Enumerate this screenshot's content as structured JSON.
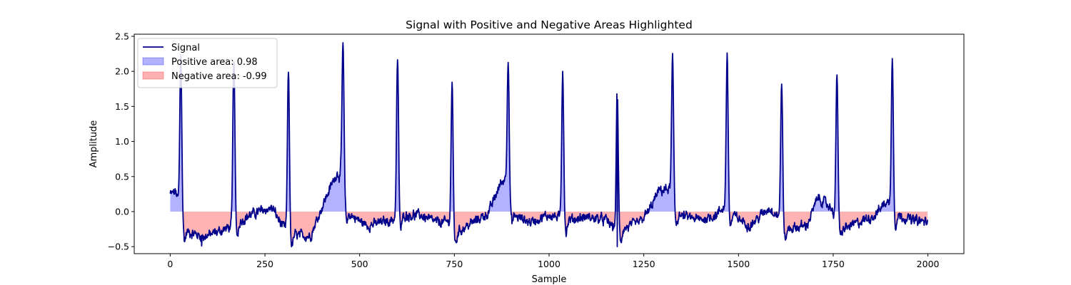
{
  "chart_data": {
    "type": "area",
    "title": "Signal with Positive and Negative Areas Highlighted",
    "xlabel": "Sample",
    "ylabel": "Amplitude",
    "xlim": [
      -95,
      2095
    ],
    "ylim": [
      -0.6,
      2.53
    ],
    "xticks": [
      0,
      250,
      500,
      750,
      1000,
      1250,
      1500,
      1750,
      2000
    ],
    "xtick_labels": [
      "0",
      "250",
      "500",
      "750",
      "1000",
      "1250",
      "1500",
      "1750",
      "2000"
    ],
    "yticks": [
      -0.5,
      0.0,
      0.5,
      1.0,
      1.5,
      2.0,
      2.5
    ],
    "ytick_labels": [
      "−0.5",
      "0.0",
      "0.5",
      "1.0",
      "1.5",
      "2.0",
      "2.5"
    ],
    "grid": false,
    "legend_position": "top-left",
    "series": [
      {
        "name": "Signal",
        "style": "line",
        "color": "#00008b"
      },
      {
        "name": "Positive area: 0.98",
        "style": "fill",
        "color": "#0000ff",
        "alpha": 0.3
      },
      {
        "name": "Negative area: -0.99",
        "style": "fill",
        "color": "#ff0000",
        "alpha": 0.3
      }
    ],
    "num_samples": 2000,
    "peaks": [
      {
        "x": 28,
        "y": 2.22
      },
      {
        "x": 168,
        "y": 2.2
      },
      {
        "x": 312,
        "y": 2.0
      },
      {
        "x": 456,
        "y": 2.4
      },
      {
        "x": 600,
        "y": 2.18
      },
      {
        "x": 744,
        "y": 1.83
      },
      {
        "x": 892,
        "y": 2.18
      },
      {
        "x": 1036,
        "y": 2.03
      },
      {
        "x": 1180,
        "y": 1.74
      },
      {
        "x": 1326,
        "y": 2.18
      },
      {
        "x": 1470,
        "y": 2.22
      },
      {
        "x": 1614,
        "y": 1.86
      },
      {
        "x": 1760,
        "y": 1.97
      },
      {
        "x": 1906,
        "y": 2.22
      }
    ],
    "baseline_waypoints": [
      {
        "x": 0,
        "y": 0.25
      },
      {
        "x": 15,
        "y": 0.28
      },
      {
        "x": 40,
        "y": -0.28
      },
      {
        "x": 90,
        "y": -0.36
      },
      {
        "x": 130,
        "y": -0.28
      },
      {
        "x": 158,
        "y": -0.22
      },
      {
        "x": 180,
        "y": -0.15
      },
      {
        "x": 210,
        "y": -0.05
      },
      {
        "x": 245,
        "y": 0.02
      },
      {
        "x": 270,
        "y": 0.05
      },
      {
        "x": 295,
        "y": -0.2
      },
      {
        "x": 325,
        "y": -0.33
      },
      {
        "x": 370,
        "y": -0.35
      },
      {
        "x": 392,
        "y": -0.05
      },
      {
        "x": 415,
        "y": 0.25
      },
      {
        "x": 440,
        "y": 0.55
      },
      {
        "x": 450,
        "y": 0.5
      },
      {
        "x": 468,
        "y": -0.02
      },
      {
        "x": 520,
        "y": -0.2
      },
      {
        "x": 585,
        "y": -0.12
      },
      {
        "x": 615,
        "y": -0.05
      },
      {
        "x": 660,
        "y": -0.05
      },
      {
        "x": 700,
        "y": -0.15
      },
      {
        "x": 735,
        "y": -0.15
      },
      {
        "x": 755,
        "y": -0.3
      },
      {
        "x": 800,
        "y": -0.15
      },
      {
        "x": 840,
        "y": -0.02
      },
      {
        "x": 872,
        "y": 0.4
      },
      {
        "x": 885,
        "y": 0.48
      },
      {
        "x": 905,
        "y": -0.05
      },
      {
        "x": 950,
        "y": -0.15
      },
      {
        "x": 1000,
        "y": -0.05
      },
      {
        "x": 1050,
        "y": -0.12
      },
      {
        "x": 1100,
        "y": -0.08
      },
      {
        "x": 1150,
        "y": -0.12
      },
      {
        "x": 1175,
        "y": -0.25
      },
      {
        "x": 1195,
        "y": -0.25
      },
      {
        "x": 1240,
        "y": -0.15
      },
      {
        "x": 1265,
        "y": 0.02
      },
      {
        "x": 1290,
        "y": 0.3
      },
      {
        "x": 1318,
        "y": 0.32
      },
      {
        "x": 1340,
        "y": -0.05
      },
      {
        "x": 1400,
        "y": -0.12
      },
      {
        "x": 1440,
        "y": -0.05
      },
      {
        "x": 1460,
        "y": 0.05
      },
      {
        "x": 1485,
        "y": -0.05
      },
      {
        "x": 1530,
        "y": -0.2
      },
      {
        "x": 1580,
        "y": 0.05
      },
      {
        "x": 1605,
        "y": -0.05
      },
      {
        "x": 1625,
        "y": -0.25
      },
      {
        "x": 1680,
        "y": -0.2
      },
      {
        "x": 1710,
        "y": 0.2
      },
      {
        "x": 1745,
        "y": 0.05
      },
      {
        "x": 1775,
        "y": -0.25
      },
      {
        "x": 1820,
        "y": -0.15
      },
      {
        "x": 1860,
        "y": -0.05
      },
      {
        "x": 1890,
        "y": 0.15
      },
      {
        "x": 1920,
        "y": -0.05
      },
      {
        "x": 1960,
        "y": -0.12
      },
      {
        "x": 1999,
        "y": -0.15
      }
    ],
    "notable_minima": [
      {
        "x": 1180,
        "y": -0.5
      },
      {
        "x": 83,
        "y": -0.49
      }
    ]
  }
}
